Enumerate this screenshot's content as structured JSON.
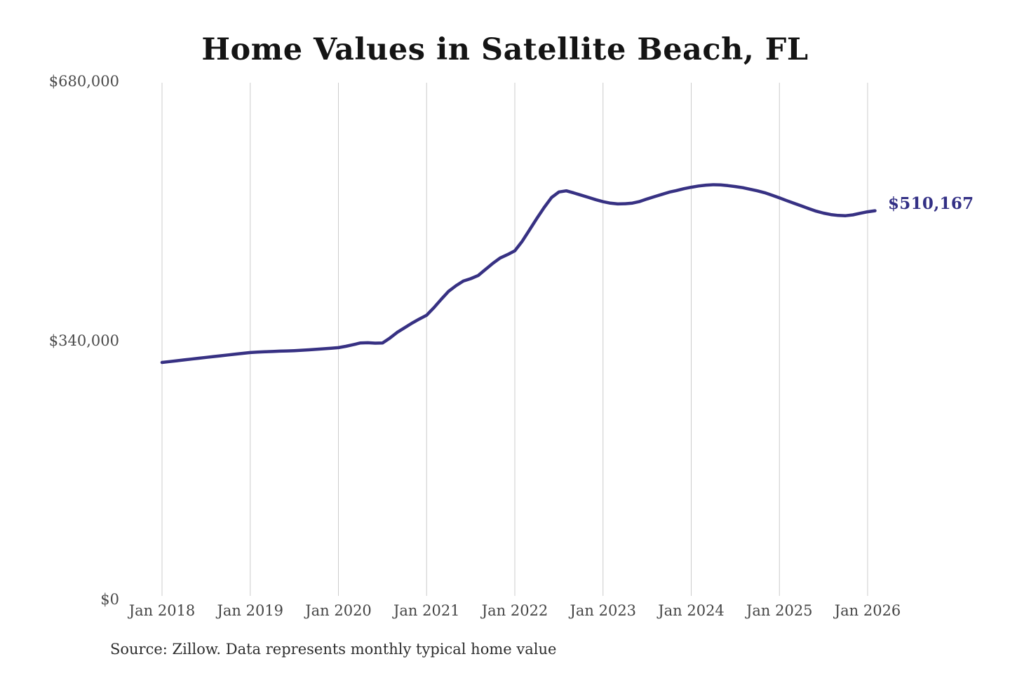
{
  "chart_data": {
    "type": "line",
    "title": "Home Values in Satellite Beach, FL",
    "source": "Source: Zillow. Data represents monthly typical home value",
    "unit": "USD",
    "latest_value": 510167,
    "latest_value_label": "$510,167",
    "x_tick_labels": [
      "Jan 2018",
      "Jan 2019",
      "Jan 2020",
      "Jan 2021",
      "Jan 2022",
      "Jan 2023",
      "Jan 2024",
      "Jan 2025",
      "Jan 2026"
    ],
    "y_ticks": [
      {
        "label": "$0",
        "value": 0
      },
      {
        "label": "$340,000",
        "value": 340000
      },
      {
        "label": "$680,000",
        "value": 680000
      }
    ],
    "ylim": [
      0,
      680000
    ],
    "grid": "vertical-only",
    "legend": "none",
    "start_month": "2018-01",
    "end_month": "2026-02",
    "months_per_point": 1,
    "values": [
      311000,
      312100,
      313200,
      314300,
      315400,
      316500,
      317600,
      318700,
      319800,
      320900,
      322000,
      323000,
      324000,
      324500,
      325000,
      325400,
      325800,
      326100,
      326500,
      327000,
      327600,
      328300,
      329000,
      329700,
      330400,
      332200,
      334300,
      336600,
      336900,
      336300,
      336600,
      343000,
      350500,
      356500,
      362500,
      368000,
      373000,
      383000,
      394000,
      404500,
      411800,
      417800,
      421000,
      425000,
      433000,
      441000,
      448000,
      452500,
      457500,
      470000,
      485000,
      500000,
      514500,
      527500,
      534800,
      536300,
      533600,
      530700,
      527700,
      524700,
      522000,
      520100,
      519100,
      519300,
      520200,
      522300,
      525600,
      528600,
      531600,
      534500,
      536600,
      539000,
      541000,
      542600,
      543700,
      544300,
      544000,
      543100,
      541900,
      540400,
      538400,
      536300,
      533800,
      530500,
      527000,
      523400,
      519900,
      516400,
      512900,
      509600,
      507000,
      505100,
      504000,
      503600,
      504700,
      506800,
      508800,
      510167
    ],
    "colors": {
      "line": "#373183",
      "latest_label": "#333085",
      "grid": "#cccccc",
      "title": "#141414",
      "axis_text": "#4a4a4a"
    }
  }
}
